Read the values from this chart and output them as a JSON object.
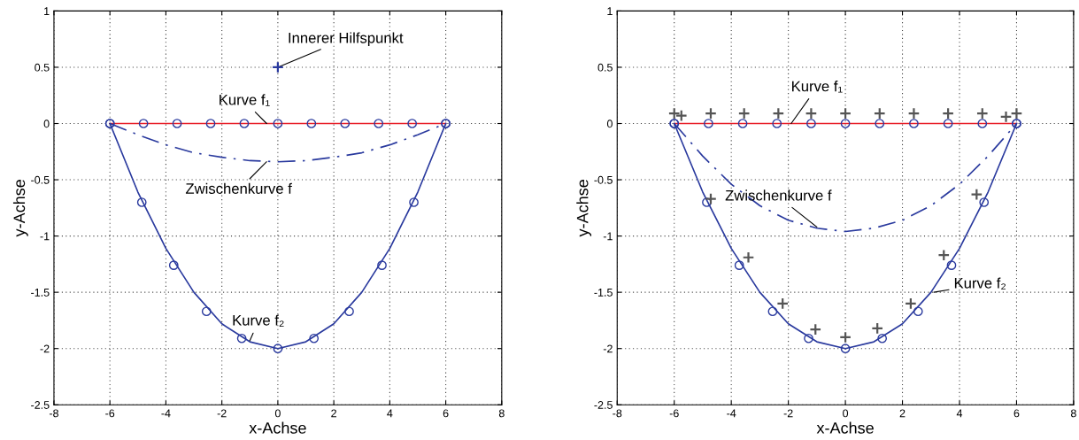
{
  "chart_data": [
    {
      "type": "line",
      "xlabel": "x-Achse",
      "ylabel": "y-Achse",
      "xlim": [
        -8,
        8
      ],
      "ylim": [
        -2.5,
        1
      ],
      "xticks": [
        -8,
        -6,
        -4,
        -2,
        0,
        2,
        4,
        6,
        8
      ],
      "yticks": [
        -2.5,
        -2,
        -1.5,
        -1,
        -0.5,
        0,
        0.5,
        1
      ],
      "grid": true,
      "series": [
        {
          "color": "#e8202a",
          "x": [
            -6,
            6
          ],
          "values": [
            0,
            0
          ],
          "marker": "none",
          "line_style": "solid"
        },
        {
          "color": "#2a3a9e",
          "type": "scatter",
          "x": [
            -6,
            -4.8,
            -3.6,
            -2.4,
            -1.2,
            0,
            1.2,
            2.4,
            3.6,
            4.8,
            6
          ],
          "values": [
            0,
            0,
            0,
            0,
            0,
            0,
            0,
            0,
            0,
            0,
            0
          ],
          "marker": "circle"
        },
        {
          "color": "#2a3a9e",
          "x": [
            -6,
            -5,
            -4,
            -3,
            -2,
            -1,
            0,
            1,
            2,
            3,
            4,
            5,
            6
          ],
          "values": [
            0,
            -0.61,
            -1.11,
            -1.5,
            -1.78,
            -1.94,
            -2,
            -1.94,
            -1.78,
            -1.5,
            -1.11,
            -0.61,
            0
          ],
          "marker": "none",
          "line_style": "solid"
        },
        {
          "color": "#2a3a9e",
          "type": "scatter",
          "x": [
            -6,
            -4.86,
            -3.72,
            -2.55,
            -1.29,
            0,
            1.29,
            2.55,
            3.72,
            4.86,
            6
          ],
          "values": [
            0,
            -0.7,
            -1.26,
            -1.67,
            -1.91,
            -2,
            -1.91,
            -1.67,
            -1.26,
            -0.7,
            0
          ],
          "marker": "circle"
        },
        {
          "color": "#2a3a9e",
          "x": [
            -6,
            -5,
            -4,
            -3,
            -2,
            -1,
            0,
            1,
            2,
            3,
            4,
            5,
            6
          ],
          "values": [
            0,
            -0.1,
            -0.19,
            -0.26,
            -0.3,
            -0.33,
            -0.34,
            -0.33,
            -0.3,
            -0.26,
            -0.19,
            -0.1,
            0
          ],
          "marker": "none",
          "line_style": "dashdot"
        },
        {
          "color": "#2a3a9e",
          "type": "scatter",
          "x": [
            0
          ],
          "values": [
            0.5
          ],
          "marker": "cross"
        }
      ],
      "annotations": [
        {
          "text": "Innerer Hilfspunkt",
          "x": 0,
          "y": 0.5
        },
        {
          "text": "Kurve f₁",
          "x": -0.4,
          "y": 0
        },
        {
          "text": "Zwischenkurve f",
          "x": -0.4,
          "y": -0.34
        },
        {
          "text": "Kurve f₂",
          "x": -1,
          "y": -1.93
        }
      ]
    },
    {
      "type": "line",
      "xlabel": "x-Achse",
      "ylabel": "y-Achse",
      "xlim": [
        -8,
        8
      ],
      "ylim": [
        -2.5,
        1
      ],
      "xticks": [
        -8,
        -6,
        -4,
        -2,
        0,
        2,
        4,
        6,
        8
      ],
      "yticks": [
        -2.5,
        -2,
        -1.5,
        -1,
        -0.5,
        0,
        0.5,
        1
      ],
      "grid": true,
      "series": [
        {
          "color": "#e8202a",
          "x": [
            -6,
            6
          ],
          "values": [
            0,
            0
          ],
          "marker": "none",
          "line_style": "solid"
        },
        {
          "color": "#2a3a9e",
          "type": "scatter",
          "x": [
            -6,
            -4.8,
            -3.6,
            -2.4,
            -1.2,
            0,
            1.2,
            2.4,
            3.6,
            4.8,
            6
          ],
          "values": [
            0,
            0,
            0,
            0,
            0,
            0,
            0,
            0,
            0,
            0,
            0
          ],
          "marker": "circle"
        },
        {
          "color": "#2a3a9e",
          "x": [
            -6,
            -5,
            -4,
            -3,
            -2,
            -1,
            0,
            1,
            2,
            3,
            4,
            5,
            6
          ],
          "values": [
            0,
            -0.61,
            -1.11,
            -1.5,
            -1.78,
            -1.94,
            -2,
            -1.94,
            -1.78,
            -1.5,
            -1.11,
            -0.61,
            0
          ],
          "marker": "none",
          "line_style": "solid"
        },
        {
          "color": "#2a3a9e",
          "type": "scatter",
          "x": [
            -6,
            -4.86,
            -3.72,
            -2.55,
            -1.29,
            0,
            1.29,
            2.55,
            3.72,
            4.86,
            6
          ],
          "values": [
            0,
            -0.7,
            -1.26,
            -1.67,
            -1.91,
            -2,
            -1.91,
            -1.67,
            -1.26,
            -0.7,
            0
          ],
          "marker": "circle"
        },
        {
          "color": "#2a3a9e",
          "x": [
            -6,
            -5,
            -4,
            -3,
            -2,
            -1,
            0,
            1,
            2,
            3,
            4,
            5,
            6
          ],
          "values": [
            0,
            -0.29,
            -0.54,
            -0.73,
            -0.86,
            -0.93,
            -0.96,
            -0.93,
            -0.86,
            -0.73,
            -0.54,
            -0.29,
            0
          ],
          "marker": "none",
          "line_style": "dashdot"
        },
        {
          "color": "#555555",
          "type": "scatter",
          "x": [
            -6,
            -5.75,
            -4.72,
            -3.55,
            -2.35,
            -1.2,
            0,
            1.2,
            2.4,
            3.6,
            4.8,
            5.63,
            6,
            -4.72,
            -3.4,
            -2.2,
            -1.05,
            0,
            1.12,
            2.29,
            3.45,
            4.6
          ],
          "values": [
            0.09,
            0.07,
            0.09,
            0.09,
            0.09,
            0.09,
            0.09,
            0.09,
            0.09,
            0.09,
            0.09,
            0.06,
            0.09,
            -0.67,
            -1.19,
            -1.6,
            -1.83,
            -1.9,
            -1.82,
            -1.6,
            -1.17,
            -0.63
          ],
          "marker": "cross"
        }
      ],
      "annotations": [
        {
          "text": "Kurve f₁",
          "x": -1.9,
          "y": 0
        },
        {
          "text": "Zwischenkurve f",
          "x": -1,
          "y": -0.92
        },
        {
          "text": "Kurve f₂",
          "x": 3.1,
          "y": -1.5
        }
      ]
    }
  ]
}
